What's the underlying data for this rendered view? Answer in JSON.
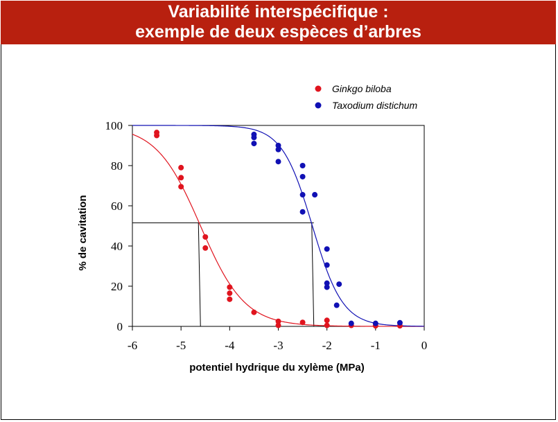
{
  "slide": {
    "title_line1": "Variabilité interspécifique :",
    "title_line2": "exemple de deux espèces d’arbres"
  },
  "chart_data": {
    "type": "scatter",
    "xlabel": "potentiel hydrique du xylème (MPa)",
    "ylabel": "% de cavitation",
    "xlim": [
      -6,
      0
    ],
    "ylim": [
      0,
      100
    ],
    "xticks": [
      -6,
      -5,
      -4,
      -3,
      -2,
      -1,
      0
    ],
    "yticks": [
      0,
      20,
      40,
      60,
      80,
      100
    ],
    "legend_position": "top-right",
    "series": [
      {
        "name": "Ginkgo biloba",
        "color": "#e0141e",
        "points": [
          [
            -5.5,
            96.5
          ],
          [
            -5.5,
            95
          ],
          [
            -5,
            79
          ],
          [
            -5,
            74
          ],
          [
            -5,
            69.5
          ],
          [
            -4.5,
            44.5
          ],
          [
            -4.5,
            39
          ],
          [
            -4,
            19.5
          ],
          [
            -4,
            16.5
          ],
          [
            -4,
            13.5
          ],
          [
            -3.5,
            7
          ],
          [
            -3,
            2.5
          ],
          [
            -3,
            0.5
          ],
          [
            -2.5,
            2
          ],
          [
            -2,
            3
          ],
          [
            -2,
            0.5
          ],
          [
            -1.5,
            0.5
          ],
          [
            -1,
            0.3
          ],
          [
            -0.5,
            0.3
          ]
        ],
        "fit": {
          "p50": -4.6,
          "slope": 2.2
        }
      },
      {
        "name": "Taxodium distichum",
        "color": "#1010b4",
        "points": [
          [
            -3.5,
            95.5
          ],
          [
            -3.5,
            94
          ],
          [
            -3.5,
            91
          ],
          [
            -3,
            90
          ],
          [
            -3,
            88
          ],
          [
            -3,
            82
          ],
          [
            -2.5,
            80
          ],
          [
            -2.5,
            74.5
          ],
          [
            -2.5,
            65.5
          ],
          [
            -2.5,
            57
          ],
          [
            -2.25,
            65.5
          ],
          [
            -2,
            38.5
          ],
          [
            -2,
            30.5
          ],
          [
            -2,
            21.5
          ],
          [
            -2,
            19.5
          ],
          [
            -1.75,
            21
          ],
          [
            -1.8,
            10.5
          ],
          [
            -1.5,
            1.5
          ],
          [
            -1,
            1.5
          ],
          [
            -0.5,
            1.8
          ]
        ],
        "fit": {
          "p50": -2.3,
          "slope": 3.2
        }
      }
    ],
    "reference_lines": [
      {
        "y": 51.5,
        "x_values": [
          -4.6,
          -2.27
        ]
      }
    ]
  }
}
